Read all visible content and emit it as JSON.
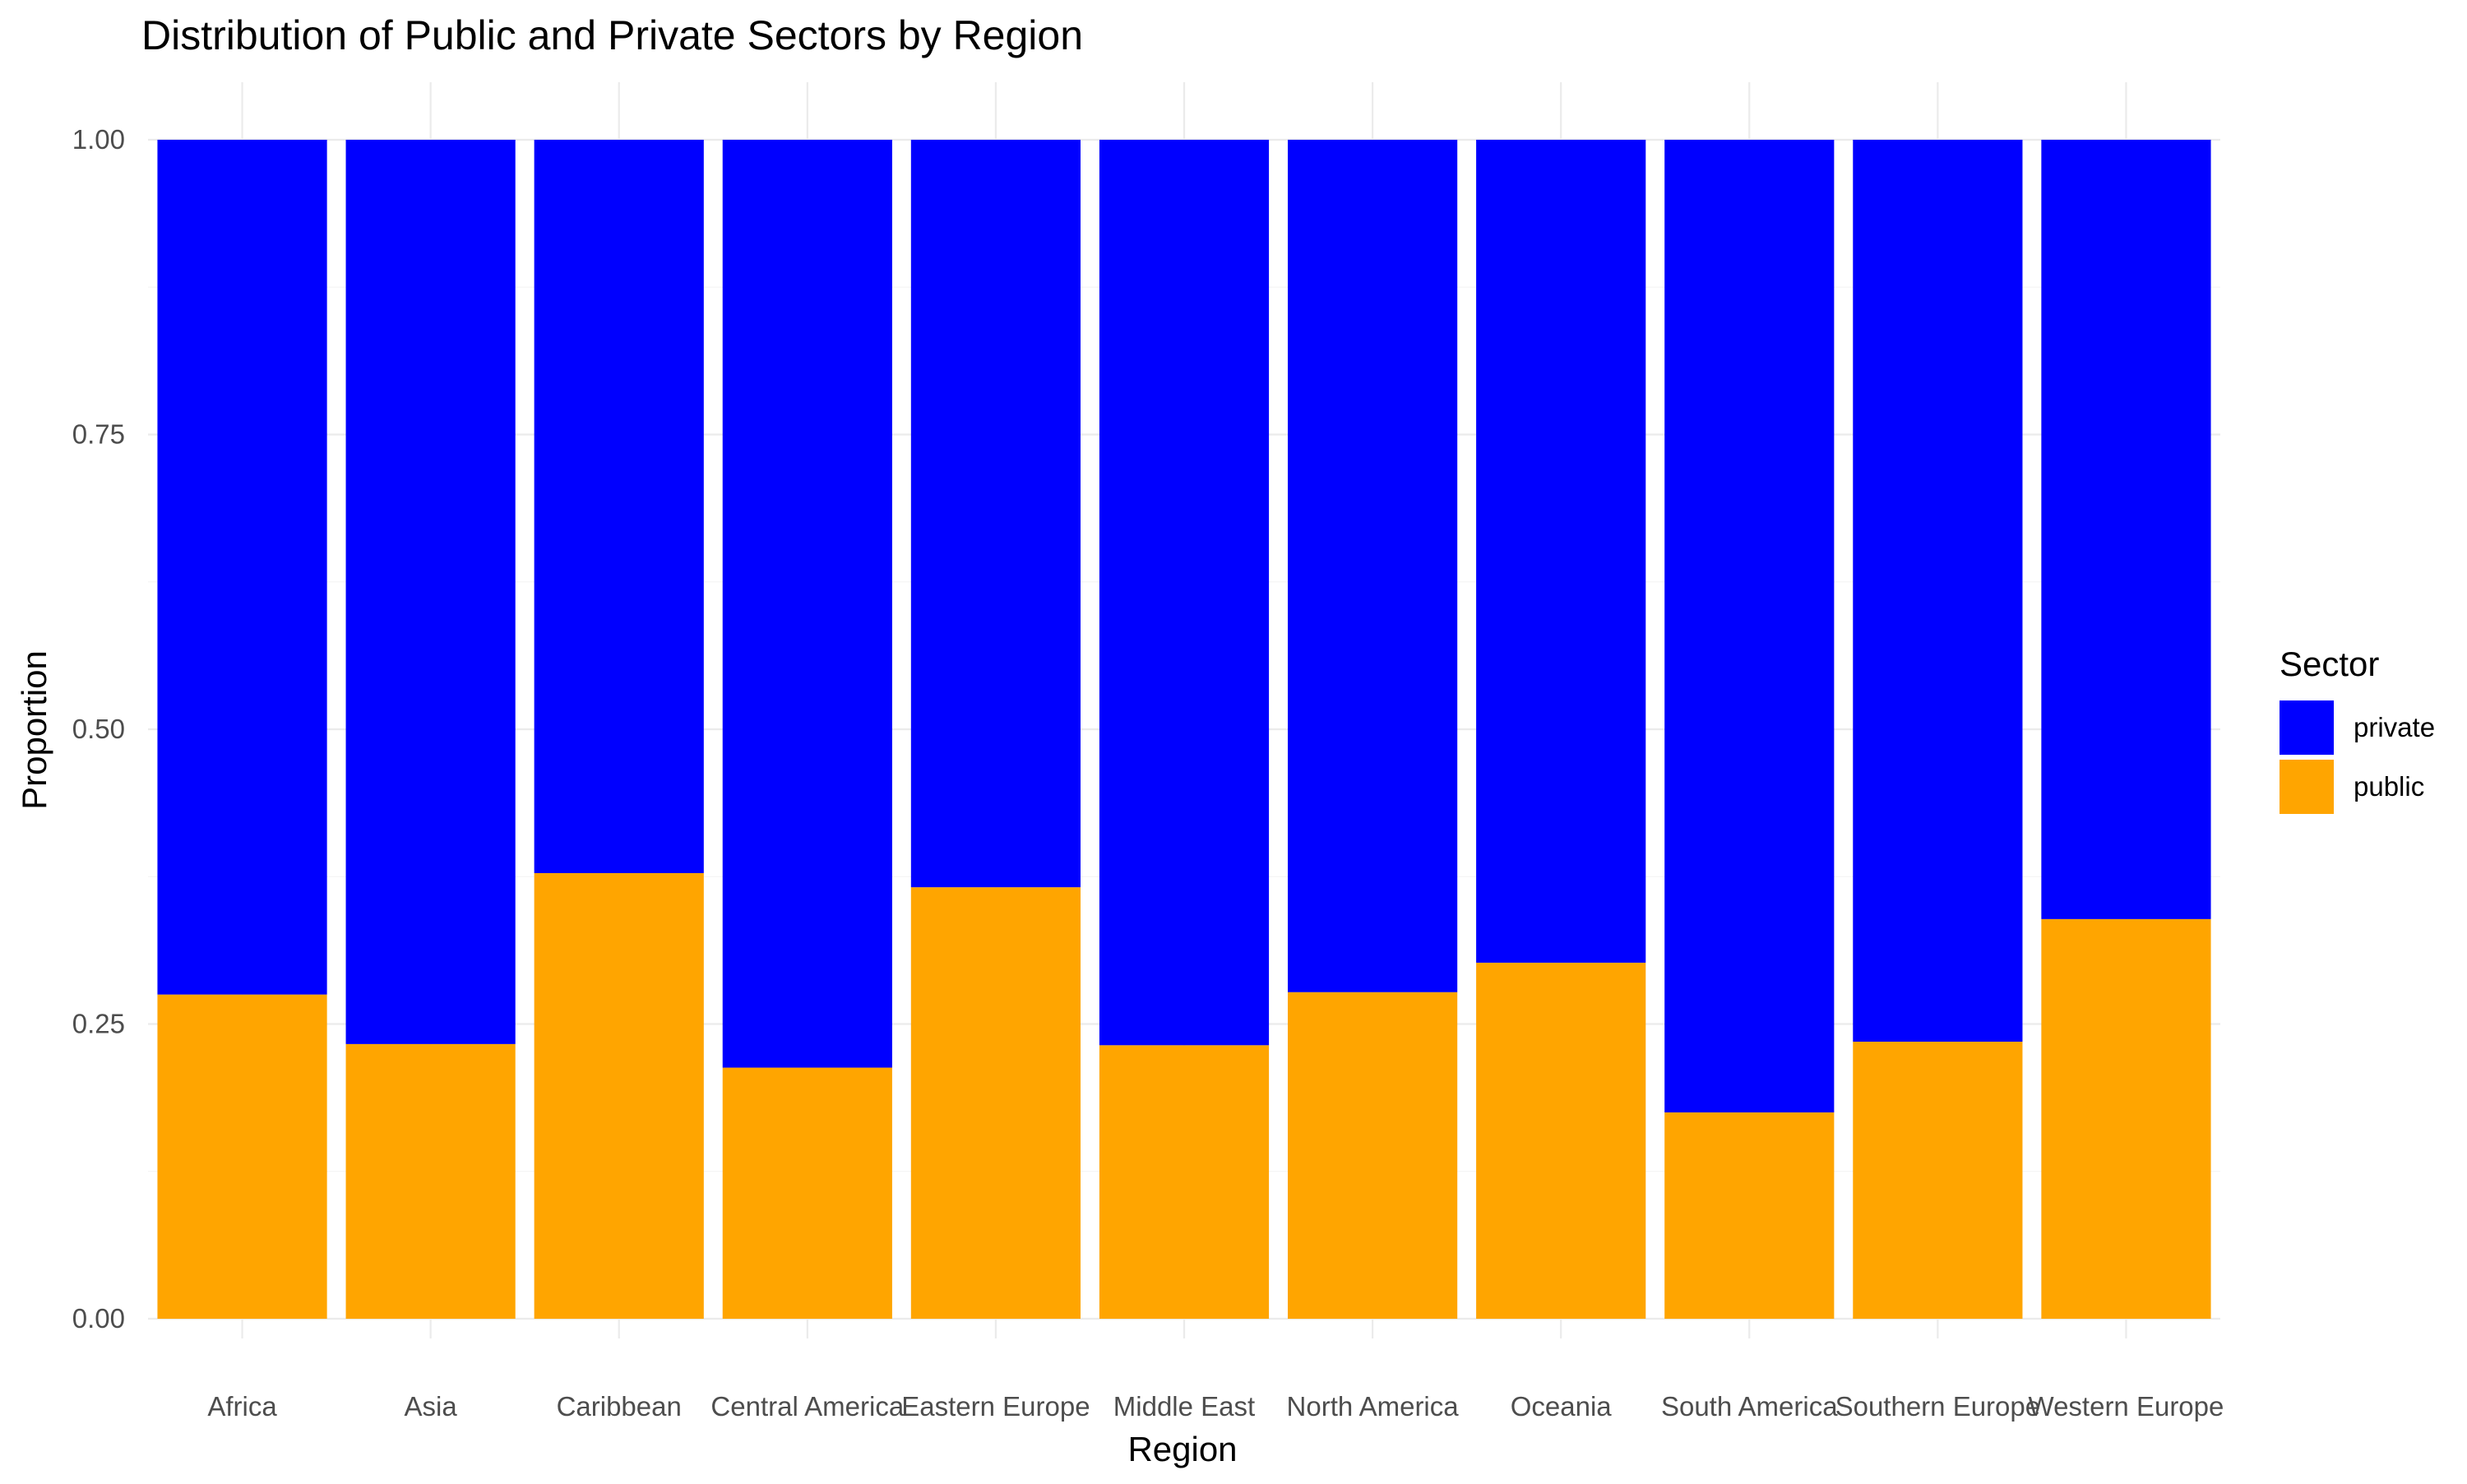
{
  "chart_data": {
    "type": "bar",
    "stacked": "fill",
    "title": "Distribution of Public and Private Sectors by Region",
    "xlabel": "Region",
    "ylabel": "Proportion",
    "ylim": [
      0,
      1
    ],
    "y_ticks": [
      "0.00",
      "0.25",
      "0.50",
      "0.75",
      "1.00"
    ],
    "categories": [
      "Africa",
      "Asia",
      "Caribbean",
      "Central America",
      "Eastern Europe",
      "Middle East",
      "North America",
      "Oceania",
      "South America",
      "Southern Europe",
      "Western Europe"
    ],
    "series": [
      {
        "name": "public",
        "color": "#FFA500",
        "values": [
          0.275,
          0.233,
          0.378,
          0.213,
          0.366,
          0.232,
          0.277,
          0.302,
          0.175,
          0.235,
          0.339
        ]
      },
      {
        "name": "private",
        "color": "#0000FF",
        "values": [
          0.725,
          0.767,
          0.622,
          0.787,
          0.634,
          0.768,
          0.723,
          0.698,
          0.825,
          0.765,
          0.661
        ]
      }
    ],
    "legend": {
      "title": "Sector",
      "position": "right",
      "order": [
        "private",
        "public"
      ]
    },
    "grid": true
  }
}
